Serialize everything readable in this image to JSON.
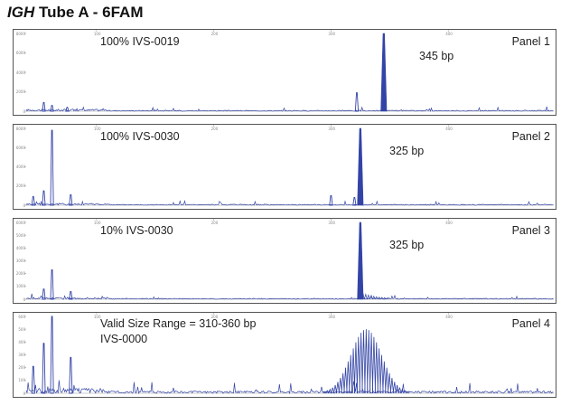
{
  "title": {
    "gene": "IGH",
    "rest": " Tube A - 6FAM"
  },
  "x_ticks": [
    "100",
    "200",
    "300",
    "400"
  ],
  "colors": {
    "trace": "#3344a6",
    "frame": "#555555"
  },
  "chart_data": [
    {
      "type": "line",
      "panel_label": "Panel 1",
      "sample": "100% IVS-0019",
      "annotation": "345 bp",
      "xlim": [
        40,
        490
      ],
      "ylim": [
        0,
        8000
      ],
      "yticks": [
        "0",
        "2000",
        "4000",
        "6000",
        "8000"
      ],
      "peaks": [
        {
          "x": 345,
          "y": 8000
        },
        {
          "x": 322,
          "y": 1900
        },
        {
          "x": 55,
          "y": 900
        },
        {
          "x": 62,
          "y": 600
        },
        {
          "x": 75,
          "y": 400
        }
      ]
    },
    {
      "type": "line",
      "panel_label": "Panel 2",
      "sample": "100% IVS-0030",
      "annotation": "325 bp",
      "xlim": [
        40,
        490
      ],
      "ylim": [
        0,
        8000
      ],
      "yticks": [
        "0",
        "2000",
        "4000",
        "6000",
        "8000"
      ],
      "peaks": [
        {
          "x": 325,
          "y": 8000
        },
        {
          "x": 62,
          "y": 7800
        },
        {
          "x": 55,
          "y": 1500
        },
        {
          "x": 46,
          "y": 900
        },
        {
          "x": 78,
          "y": 1100
        },
        {
          "x": 300,
          "y": 1000
        },
        {
          "x": 320,
          "y": 800
        }
      ]
    },
    {
      "type": "line",
      "panel_label": "Panel 3",
      "sample": "10% IVS-0030",
      "annotation": "325 bp",
      "xlim": [
        40,
        490
      ],
      "ylim": [
        0,
        6000
      ],
      "yticks": [
        "0",
        "1000",
        "2000",
        "3000",
        "4000",
        "5000",
        "6000"
      ],
      "peaks": [
        {
          "x": 325,
          "y": 6000
        },
        {
          "x": 62,
          "y": 2300
        },
        {
          "x": 55,
          "y": 800
        },
        {
          "x": 78,
          "y": 600
        }
      ]
    },
    {
      "type": "line",
      "panel_label": "Panel 4",
      "sample": "Valid Size Range = 310-360 bp",
      "sample2": "IVS-0000",
      "annotation": "",
      "xlim": [
        40,
        490
      ],
      "ylim": [
        0,
        600
      ],
      "yticks": [
        "0",
        "100",
        "200",
        "300",
        "400",
        "500",
        "600"
      ],
      "peaks": [
        {
          "x": 62,
          "y": 600
        },
        {
          "x": 55,
          "y": 390
        },
        {
          "x": 78,
          "y": 280
        },
        {
          "x": 46,
          "y": 210
        },
        {
          "x": 330,
          "y": 500
        }
      ]
    }
  ]
}
